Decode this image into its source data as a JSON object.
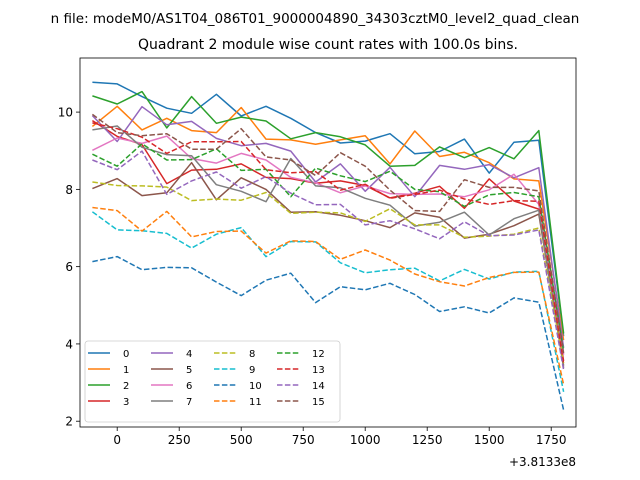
{
  "chart_data": {
    "type": "line",
    "suptitle": "n file: modeM0/AS1T04_086T01_9000004890_34303cztM0_level2_quad_clean",
    "title": "Quadrant 2 module wise count rates with 100.0s bins.",
    "xlabel": "",
    "ylabel": "",
    "x_offset_label": "+3.8133e8",
    "xlim": [
      -150,
      1850
    ],
    "ylim": [
      1.85,
      11.4
    ],
    "xticks": [
      0,
      250,
      500,
      750,
      1000,
      1250,
      1500,
      1750
    ],
    "yticks": [
      2,
      4,
      6,
      8,
      10
    ],
    "x": [
      -100,
      0,
      100,
      200,
      300,
      400,
      500,
      600,
      700,
      800,
      900,
      1000,
      1100,
      1200,
      1300,
      1400,
      1500,
      1600,
      1700,
      1800
    ],
    "legend_position": "lower-left",
    "legend_columns": 4,
    "series": [
      {
        "name": "0",
        "color": "#1f77b4",
        "dash": "solid",
        "values": [
          10.77,
          10.73,
          10.4,
          10.1,
          9.97,
          10.46,
          9.9,
          10.15,
          9.84,
          9.47,
          9.2,
          9.25,
          9.44,
          8.92,
          8.98,
          9.3,
          8.42,
          9.22,
          9.27,
          4.2
        ]
      },
      {
        "name": "1",
        "color": "#ff7f0e",
        "dash": "solid",
        "values": [
          9.63,
          10.15,
          9.54,
          9.84,
          9.52,
          9.47,
          10.12,
          9.3,
          9.28,
          9.17,
          9.28,
          9.39,
          8.66,
          9.51,
          8.85,
          8.96,
          8.69,
          8.27,
          8.22,
          4.1
        ]
      },
      {
        "name": "2",
        "color": "#2ca02c",
        "dash": "solid",
        "values": [
          10.42,
          10.21,
          10.53,
          9.59,
          10.4,
          9.71,
          9.87,
          9.77,
          9.31,
          9.47,
          9.36,
          9.15,
          8.6,
          8.62,
          9.1,
          8.82,
          9.08,
          8.79,
          9.52,
          4.27
        ]
      },
      {
        "name": "3",
        "color": "#d62728",
        "dash": "solid",
        "values": [
          9.78,
          9.37,
          9.16,
          8.15,
          8.5,
          8.52,
          8.66,
          8.31,
          8.28,
          8.16,
          8.22,
          8.1,
          7.78,
          7.9,
          8.08,
          7.51,
          8.27,
          7.7,
          7.49,
          3.56
        ]
      },
      {
        "name": "4",
        "color": "#9467bd",
        "dash": "solid",
        "values": [
          9.91,
          9.24,
          10.14,
          9.67,
          9.76,
          9.32,
          9.13,
          9.19,
          8.99,
          8.19,
          8.66,
          7.95,
          8.57,
          7.81,
          8.62,
          8.52,
          8.64,
          8.3,
          8.56,
          3.9
        ]
      },
      {
        "name": "5",
        "color": "#8c564b",
        "dash": "solid",
        "values": [
          8.02,
          8.28,
          7.84,
          7.91,
          8.69,
          7.73,
          8.3,
          8.0,
          7.41,
          7.42,
          7.33,
          7.19,
          7.01,
          7.39,
          7.28,
          6.74,
          6.84,
          7.06,
          7.36,
          3.44
        ]
      },
      {
        "name": "6",
        "color": "#e377c2",
        "dash": "solid",
        "values": [
          9.01,
          9.33,
          9.19,
          9.38,
          8.8,
          8.68,
          8.93,
          8.76,
          8.31,
          8.17,
          7.91,
          8.09,
          7.89,
          7.87,
          7.88,
          7.81,
          7.99,
          8.39,
          7.61,
          3.72
        ]
      },
      {
        "name": "7",
        "color": "#7f7f7f",
        "dash": "solid",
        "values": [
          9.54,
          9.64,
          9.09,
          8.9,
          8.87,
          8.12,
          7.95,
          7.68,
          8.8,
          8.09,
          8.04,
          7.77,
          7.59,
          7.05,
          7.15,
          7.41,
          6.82,
          7.24,
          7.46,
          3.38
        ]
      },
      {
        "name": "8",
        "color": "#bcbd22",
        "dash": "dashed",
        "values": [
          8.19,
          8.1,
          8.09,
          8.06,
          7.71,
          7.75,
          7.72,
          7.92,
          7.38,
          7.41,
          7.39,
          7.17,
          7.5,
          7.08,
          7.08,
          6.76,
          6.79,
          6.84,
          7.0,
          3.5
        ]
      },
      {
        "name": "9",
        "color": "#17becf",
        "dash": "dashed",
        "values": [
          7.42,
          6.95,
          6.93,
          6.86,
          6.48,
          6.84,
          7.01,
          6.26,
          6.65,
          6.64,
          6.1,
          5.84,
          5.92,
          5.96,
          5.63,
          5.93,
          5.68,
          5.86,
          5.88,
          2.76
        ]
      },
      {
        "name": "10",
        "color": "#1f77b4",
        "dash": "dashed",
        "values": [
          6.13,
          6.26,
          5.92,
          5.98,
          5.97,
          5.6,
          5.25,
          5.65,
          5.83,
          5.07,
          5.48,
          5.4,
          5.57,
          5.28,
          4.84,
          4.96,
          4.8,
          5.19,
          5.08,
          2.29
        ]
      },
      {
        "name": "11",
        "color": "#ff7f0e",
        "dash": "dashed",
        "values": [
          7.53,
          7.45,
          6.92,
          7.43,
          6.77,
          6.91,
          6.92,
          6.35,
          6.67,
          6.65,
          6.19,
          6.43,
          6.17,
          5.81,
          5.61,
          5.5,
          5.72,
          5.85,
          5.86,
          2.95
        ]
      },
      {
        "name": "12",
        "color": "#2ca02c",
        "dash": "dashed",
        "values": [
          8.91,
          8.6,
          9.18,
          8.76,
          8.77,
          9.05,
          8.49,
          8.52,
          7.81,
          8.55,
          8.35,
          8.2,
          8.47,
          8.0,
          7.94,
          7.56,
          7.86,
          7.92,
          7.81,
          3.81
        ]
      },
      {
        "name": "13",
        "color": "#d62728",
        "dash": "dashed",
        "values": [
          9.72,
          9.57,
          9.35,
          8.93,
          9.23,
          9.23,
          9.24,
          8.51,
          8.43,
          8.46,
          7.98,
          8.13,
          7.77,
          7.87,
          7.98,
          7.75,
          7.61,
          7.71,
          7.69,
          3.48
        ]
      },
      {
        "name": "14",
        "color": "#9467bd",
        "dash": "dashed",
        "values": [
          8.76,
          8.51,
          8.99,
          7.87,
          8.22,
          8.45,
          8.03,
          8.33,
          7.9,
          7.6,
          7.61,
          7.08,
          7.19,
          6.98,
          6.72,
          7.16,
          6.8,
          6.82,
          6.95,
          3.33
        ]
      },
      {
        "name": "15",
        "color": "#8c564b",
        "dash": "dashed",
        "values": [
          9.94,
          9.47,
          9.39,
          9.44,
          9.04,
          9.04,
          9.57,
          8.84,
          8.76,
          8.36,
          8.95,
          8.6,
          7.98,
          7.45,
          7.43,
          8.25,
          8.05,
          8.05,
          7.96,
          3.76
        ]
      }
    ]
  }
}
